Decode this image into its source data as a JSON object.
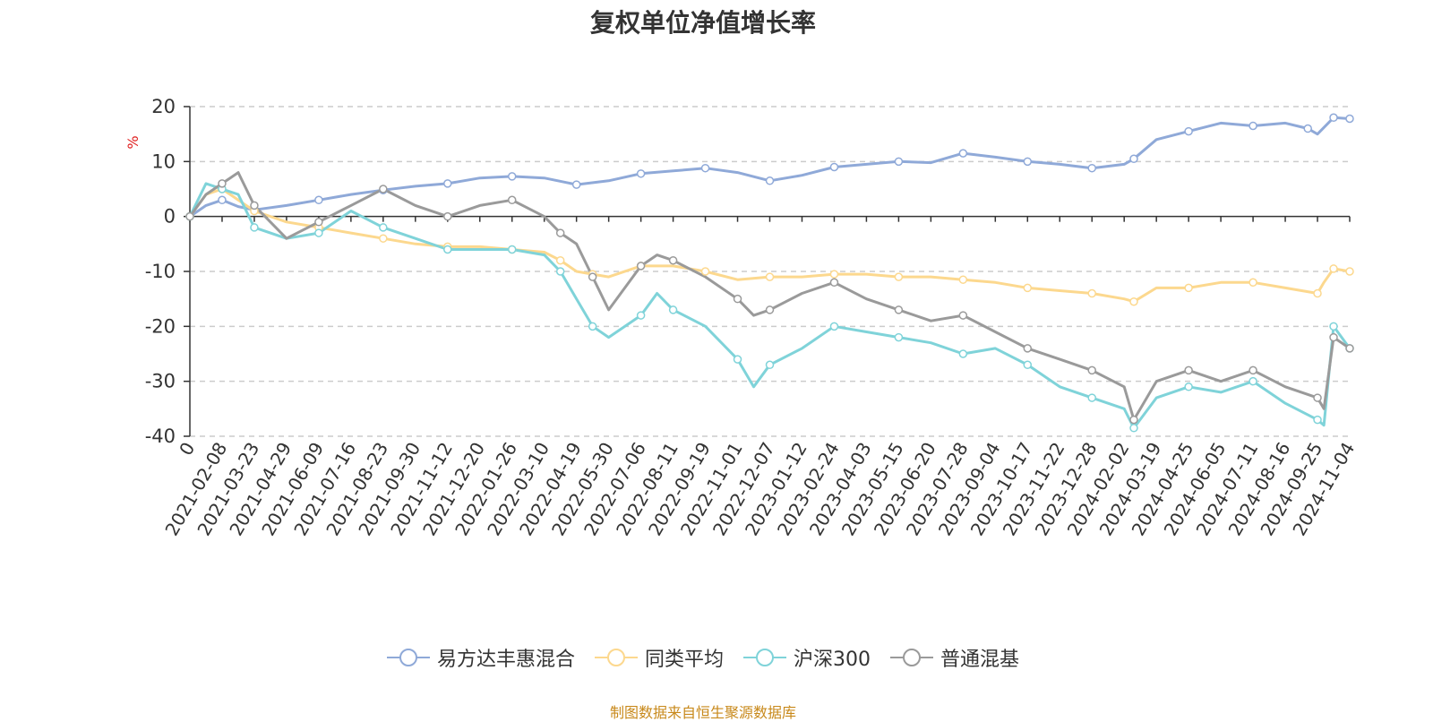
{
  "title": "复权单位净值增长率",
  "source_note": "制图数据来自恒生聚源数据库",
  "colors": {
    "fund": "#8fa9d8",
    "category_avg": "#fcd88e",
    "hs300": "#7fd3d9",
    "mixed_base": "#9a9a9a",
    "axis": "#333333",
    "grid": "#cccccc",
    "ylabel": "#e02020"
  },
  "chart_data": {
    "type": "line",
    "title": "复权单位净值增长率",
    "ylabel": "%",
    "xlabel": "",
    "ylim": [
      -40,
      20
    ],
    "yticks": [
      20,
      10,
      0,
      -10,
      -20,
      -30,
      -40
    ],
    "grid": true,
    "legend_position": "bottom",
    "x_tick_labels": [
      "0",
      "2021-02-08",
      "2021-03-23",
      "2021-04-29",
      "2021-06-09",
      "2021-07-16",
      "2021-08-23",
      "2021-09-30",
      "2021-11-12",
      "2021-12-20",
      "2022-01-26",
      "2022-03-10",
      "2022-04-19",
      "2022-05-30",
      "2022-07-06",
      "2022-08-11",
      "2022-09-19",
      "2022-11-01",
      "2022-12-07",
      "2023-01-12",
      "2023-02-24",
      "2023-04-03",
      "2023-05-15",
      "2023-06-20",
      "2023-07-28",
      "2023-09-04",
      "2023-10-17",
      "2023-11-22",
      "2023-12-28",
      "2024-02-02",
      "2024-03-19",
      "2024-04-25",
      "2024-06-05",
      "2024-07-11",
      "2024-08-16",
      "2024-09-25",
      "2024-11-04"
    ],
    "x_range": [
      0,
      36
    ],
    "series": [
      {
        "name": "易方达丰惠混合",
        "color_key": "fund",
        "x": [
          0,
          0.5,
          1,
          1.5,
          2,
          3,
          4,
          5,
          6,
          7,
          8,
          9,
          10,
          11,
          12,
          13,
          14,
          15,
          16,
          17,
          18,
          19,
          20,
          21,
          22,
          23,
          24,
          25,
          26,
          27,
          28,
          29,
          29.3,
          30,
          31,
          32,
          33,
          34,
          34.7,
          35,
          35.5,
          36
        ],
        "y": [
          0,
          2,
          3,
          1.8,
          1.2,
          2,
          3,
          4,
          4.8,
          5.5,
          6,
          7,
          7.3,
          7,
          5.8,
          6.5,
          7.8,
          8.3,
          8.8,
          8,
          6.5,
          7.5,
          9,
          9.5,
          10,
          9.8,
          11.5,
          10.8,
          10,
          9.5,
          8.8,
          9.5,
          10.5,
          14,
          15.5,
          17,
          16.5,
          17,
          16,
          15,
          18,
          17.8
        ]
      },
      {
        "name": "同类平均",
        "color_key": "category_avg",
        "x": [
          0,
          0.5,
          1,
          1.5,
          2,
          3,
          4,
          5,
          6,
          7,
          8,
          9,
          10,
          11,
          11.5,
          12,
          12.5,
          13,
          14,
          15,
          16,
          17,
          18,
          19,
          20,
          21,
          22,
          23,
          24,
          25,
          26,
          27,
          28,
          29,
          29.3,
          30,
          31,
          32,
          33,
          34,
          35,
          35.2,
          35.5,
          36
        ],
        "y": [
          0,
          4,
          5,
          3,
          1,
          -1,
          -2,
          -3,
          -4,
          -5,
          -5.5,
          -5.5,
          -6,
          -6.5,
          -8,
          -10,
          -10.5,
          -11,
          -9,
          -9,
          -10,
          -11.5,
          -11,
          -11,
          -10.5,
          -10.5,
          -11,
          -11,
          -11.5,
          -12,
          -13,
          -13.5,
          -14,
          -15,
          -15.5,
          -13,
          -13,
          -12,
          -12,
          -13,
          -14,
          -12,
          -9.5,
          -10
        ]
      },
      {
        "name": "沪深300",
        "color_key": "hs300",
        "x": [
          0,
          0.5,
          1,
          1.5,
          2,
          3,
          4,
          5,
          6,
          7,
          8,
          9,
          10,
          11,
          11.5,
          12,
          12.5,
          13,
          14,
          14.5,
          15,
          16,
          17,
          17.5,
          18,
          19,
          20,
          21,
          22,
          23,
          24,
          25,
          26,
          27,
          28,
          29,
          29.3,
          30,
          31,
          32,
          33,
          34,
          35,
          35.2,
          35.5,
          36
        ],
        "y": [
          0,
          6,
          5,
          4,
          -2,
          -4,
          -3,
          1,
          -2,
          -4,
          -6,
          -6,
          -6,
          -7,
          -10,
          -15,
          -20,
          -22,
          -18,
          -14,
          -17,
          -20,
          -26,
          -31,
          -27,
          -24,
          -20,
          -21,
          -22,
          -23,
          -25,
          -24,
          -27,
          -31,
          -33,
          -35,
          -38.5,
          -33,
          -31,
          -32,
          -30,
          -34,
          -37,
          -38,
          -20,
          -24
        ]
      },
      {
        "name": "普通混基",
        "color_key": "mixed_base",
        "x": [
          0,
          0.5,
          1,
          1.5,
          2,
          3,
          4,
          5,
          6,
          7,
          8,
          9,
          10,
          11,
          11.5,
          12,
          12.5,
          13,
          14,
          14.5,
          15,
          16,
          17,
          17.5,
          18,
          19,
          20,
          21,
          22,
          23,
          24,
          25,
          26,
          27,
          28,
          29,
          29.3,
          30,
          31,
          32,
          33,
          34,
          35,
          35.2,
          35.5,
          36
        ],
        "y": [
          0,
          4,
          6,
          8,
          2,
          -4,
          -1,
          2,
          5,
          2,
          0,
          2,
          3,
          0,
          -3,
          -5,
          -11,
          -17,
          -9,
          -7,
          -8,
          -11,
          -15,
          -18,
          -17,
          -14,
          -12,
          -15,
          -17,
          -19,
          -18,
          -21,
          -24,
          -26,
          -28,
          -31,
          -37,
          -30,
          -28,
          -30,
          -28,
          -31,
          -33,
          -35,
          -22,
          -24
        ]
      }
    ]
  }
}
